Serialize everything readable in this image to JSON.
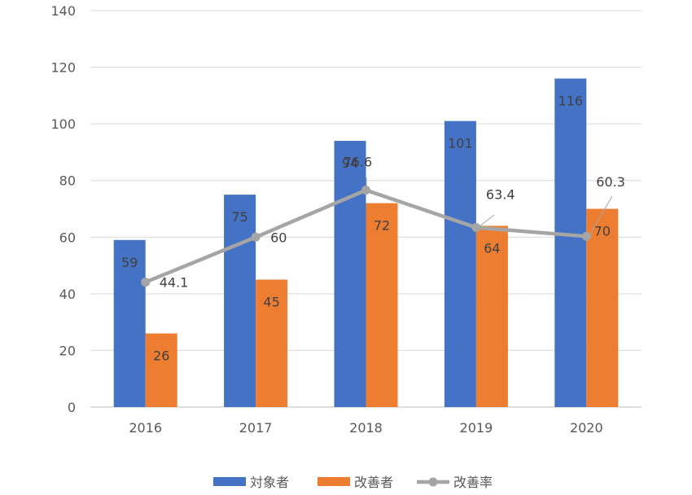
{
  "chart_data": {
    "type": "bar",
    "categories": [
      "2016",
      "2017",
      "2018",
      "2019",
      "2020"
    ],
    "ylim": [
      0,
      140
    ],
    "yticks": [
      0,
      20,
      40,
      60,
      80,
      100,
      120,
      140
    ],
    "grid": true,
    "legend_position": "bottom",
    "series": [
      {
        "name": "対象者",
        "kind": "bar",
        "color": "#4472C4",
        "values": [
          59,
          75,
          94,
          101,
          116
        ]
      },
      {
        "name": "改善者",
        "kind": "bar",
        "color": "#ED7D31",
        "values": [
          26,
          45,
          72,
          64,
          70
        ]
      },
      {
        "name": "改善率",
        "kind": "line",
        "color": "#A5A5A5",
        "values": [
          44.1,
          60,
          76.6,
          63.4,
          60.3
        ]
      }
    ]
  }
}
